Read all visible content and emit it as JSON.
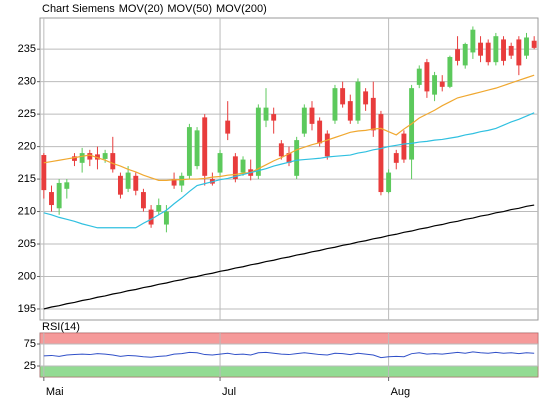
{
  "chart_data": [
    {
      "type": "candlestick",
      "name": "Chart Siemens",
      "name_color": "#e8603c",
      "up_color": "#5cc95c",
      "down_color": "#e83c3c",
      "categories": [
        "Mai",
        null,
        null,
        null,
        null,
        null,
        null,
        null,
        null,
        null,
        null,
        null,
        null,
        null,
        null,
        null,
        null,
        null,
        null,
        null,
        null,
        null,
        null,
        "Jul",
        null,
        null,
        null,
        null,
        null,
        null,
        null,
        null,
        null,
        null,
        null,
        null,
        null,
        null,
        null,
        null,
        null,
        null,
        null,
        null,
        null,
        "Aug",
        null,
        null,
        null,
        null,
        null,
        null,
        null,
        null,
        null,
        null,
        null,
        null,
        null,
        null,
        null,
        null,
        null,
        null,
        null
      ],
      "open": [
        218.7,
        213,
        210.5,
        213.5,
        218.5,
        217.5,
        219,
        218.8,
        218.1,
        219,
        215.5,
        213.5,
        215.5,
        213,
        210.3,
        210,
        208,
        215,
        214,
        215.5,
        217,
        224.5,
        215,
        216,
        224,
        218.5,
        216,
        216.5,
        215.5,
        224,
        225,
        220.5,
        219,
        215.5,
        222,
        226,
        224,
        222,
        224,
        229,
        227,
        224,
        228.5,
        227.5,
        225,
        213,
        219,
        222,
        218,
        229.5,
        233,
        228,
        230,
        229.2,
        235,
        232.5,
        234.5,
        236,
        236,
        233,
        236.5,
        235.5,
        236.5,
        234,
        236.3
      ],
      "high": [
        219,
        214,
        215,
        215,
        219,
        219.8,
        219.5,
        220,
        219.5,
        221.5,
        216,
        217,
        216,
        213.5,
        211,
        212,
        211,
        216,
        216,
        223.5,
        223,
        225,
        216,
        219.5,
        227,
        219,
        218.5,
        218,
        226.5,
        229,
        226,
        221,
        220,
        221.5,
        226.5,
        227,
        224.5,
        222.5,
        229.5,
        230,
        228,
        230.5,
        229,
        230,
        225.5,
        216.5,
        219.5,
        222.5,
        229.5,
        232.5,
        233.5,
        231.5,
        231,
        234,
        237,
        236,
        238.5,
        237,
        236.5,
        237.5,
        237,
        236,
        237,
        237.5,
        237
      ],
      "low": [
        212,
        210,
        209.5,
        212,
        217,
        216,
        217,
        216.5,
        217.5,
        216,
        212,
        213,
        212.5,
        210,
        207.5,
        209.5,
        206.8,
        213.5,
        213,
        215,
        216.5,
        214,
        214,
        215.5,
        221,
        214.5,
        215.5,
        214.8,
        215,
        223,
        222,
        218,
        217,
        215,
        221.5,
        222.5,
        220,
        218,
        223.5,
        226,
        223.5,
        223.5,
        225.5,
        221.5,
        212.5,
        212.8,
        216.5,
        217.5,
        215,
        229,
        227.5,
        227,
        228.5,
        229,
        232.5,
        232,
        233.5,
        233,
        232.5,
        232.5,
        232.5,
        233.5,
        231,
        233.5,
        235
      ],
      "close": [
        213.3,
        211,
        214.4,
        214.5,
        217.8,
        219,
        218,
        218,
        219,
        216.5,
        212.6,
        216,
        213.2,
        210.5,
        208,
        211,
        210,
        214,
        215.5,
        223,
        222.5,
        215.5,
        214.3,
        219,
        222,
        215,
        218,
        215.5,
        226,
        226,
        224,
        218.5,
        217.5,
        221,
        226,
        223.5,
        220.5,
        218.5,
        229,
        226.5,
        224,
        230,
        226.5,
        222.5,
        213,
        216,
        217.5,
        218,
        229,
        232,
        228.5,
        231,
        229.2,
        233.8,
        233.2,
        235.8,
        238,
        234,
        233,
        237,
        233.2,
        234,
        232.5,
        236.8,
        235.2
      ],
      "series": [
        {
          "name": "MOV(20)",
          "color": "#f0a830",
          "values": [
            217.5,
            217.7,
            217.9,
            218.1,
            218.3,
            218.5,
            218.7,
            218.3,
            217.9,
            217.4,
            217,
            216.5,
            216.1,
            215.6,
            215.2,
            214.8,
            214.8,
            214.9,
            214.9,
            215,
            215,
            215.1,
            215.3,
            215.4,
            215.6,
            215.7,
            215.9,
            216,
            216.6,
            217.2,
            217.8,
            218.3,
            218.9,
            219.5,
            219.9,
            220.3,
            220.6,
            221,
            221.4,
            221.8,
            222.2,
            222.4,
            222.5,
            222.7,
            222.8,
            222.3,
            221.8,
            222.7,
            223.5,
            224.4,
            225,
            225.6,
            226.3,
            226.9,
            227.5,
            227.8,
            228.1,
            228.4,
            228.7,
            229,
            229.4,
            229.8,
            230.2,
            230.6,
            231
          ]
        },
        {
          "name": "MOV(50)",
          "color": "#30c0e0",
          "values": [
            209.8,
            209.5,
            209.1,
            208.8,
            208.5,
            208.1,
            207.8,
            207.5,
            207.5,
            207.5,
            207.5,
            207.5,
            207.5,
            208.2,
            208.8,
            209.5,
            210.2,
            211.2,
            212.1,
            213.1,
            214,
            214.3,
            214.6,
            214.9,
            215.1,
            215.4,
            215.7,
            216,
            216.3,
            216.6,
            217,
            217.3,
            217.6,
            217.9,
            218,
            218.1,
            218.2,
            218.4,
            218.5,
            218.6,
            218.7,
            219,
            219.2,
            219.5,
            219.7,
            220,
            220.2,
            220.4,
            220.5,
            220.7,
            220.8,
            221,
            221.1,
            221.3,
            221.5,
            221.8,
            222,
            222.3,
            222.5,
            222.8,
            223.3,
            223.8,
            224.2,
            224.7,
            225.2
          ]
        },
        {
          "name": "MOV(200)",
          "color": "#000000",
          "values": [
            195,
            195.3,
            195.5,
            195.8,
            196,
            196.3,
            196.5,
            196.8,
            197,
            197.3,
            197.5,
            197.8,
            198,
            198.3,
            198.5,
            198.8,
            199,
            199.3,
            199.5,
            199.8,
            200,
            200.3,
            200.5,
            200.8,
            201,
            201.3,
            201.5,
            201.8,
            202,
            202.3,
            202.5,
            202.8,
            203,
            203.3,
            203.5,
            203.8,
            204,
            204.3,
            204.5,
            204.8,
            205,
            205.3,
            205.5,
            205.8,
            206,
            206.3,
            206.5,
            206.8,
            207,
            207.3,
            207.5,
            207.8,
            208,
            208.3,
            208.5,
            208.8,
            209,
            209.3,
            209.5,
            209.8,
            210,
            210.3,
            210.5,
            210.8,
            211
          ]
        }
      ],
      "ylim": [
        193.3,
        239.8
      ],
      "yticks": [
        195,
        200,
        205,
        210,
        215,
        220,
        225,
        230,
        235
      ],
      "grid": true
    },
    {
      "type": "line",
      "title": "RSI(14)",
      "color": "#3050c8",
      "values": [
        48,
        49,
        47,
        50,
        51,
        52,
        51,
        53,
        52,
        50,
        47,
        49,
        48,
        46,
        45,
        47,
        48,
        52,
        53,
        56,
        55,
        51,
        50,
        52,
        54,
        51,
        52,
        50,
        55,
        56,
        54,
        52,
        51,
        53,
        55,
        53,
        51,
        50,
        54,
        53,
        51,
        54,
        52,
        50,
        44,
        46,
        47,
        46,
        53,
        55,
        52,
        53,
        52,
        54,
        56,
        54,
        57,
        55,
        54,
        56,
        54,
        55,
        53,
        55,
        54
      ],
      "ylim": [
        0,
        100
      ],
      "yticks": [
        25,
        75
      ],
      "bands": [
        {
          "from": 75,
          "to": 100,
          "color": "#f49090"
        },
        {
          "from": 0,
          "to": 25,
          "color": "#88d888"
        }
      ]
    }
  ]
}
